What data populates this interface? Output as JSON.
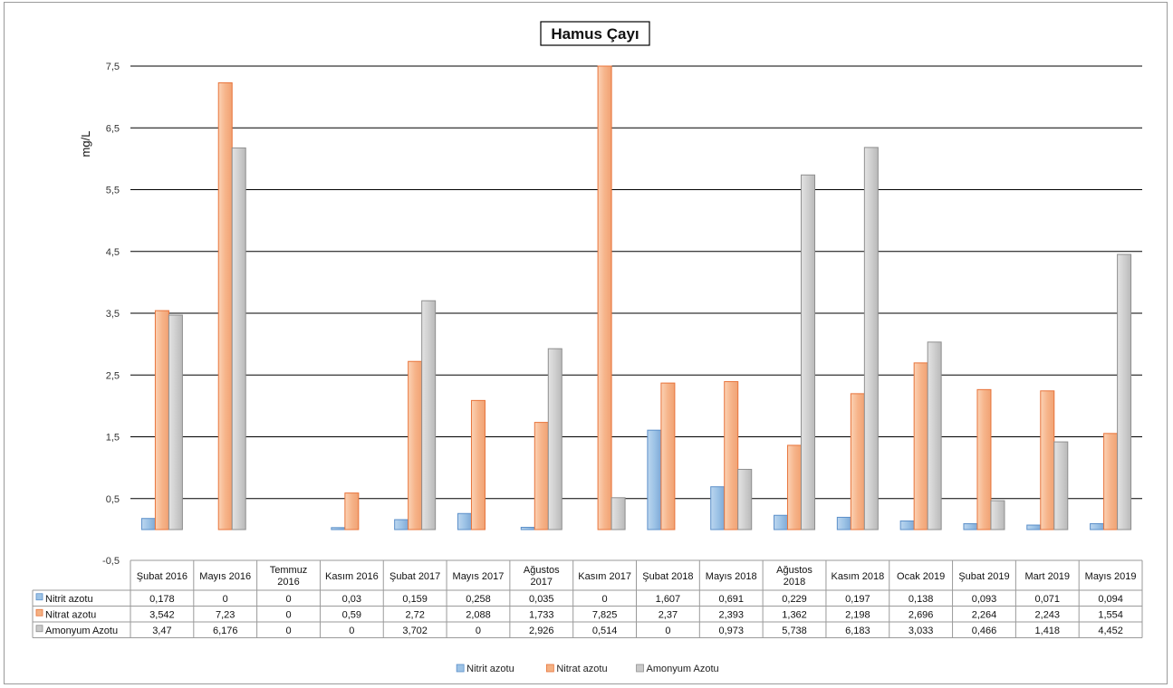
{
  "chart_data": {
    "type": "bar",
    "title": "Hamus Çayı",
    "ylabel": "mg/L",
    "ylim": [
      -0.5,
      7.5
    ],
    "yticks": [
      "7,5",
      "6,5",
      "5,5",
      "4,5",
      "3,5",
      "2,5",
      "1,5",
      "0,5",
      "-0,5"
    ],
    "ytick_values": [
      7.5,
      6.5,
      5.5,
      4.5,
      3.5,
      2.5,
      1.5,
      0.5,
      -0.5
    ],
    "grid": true,
    "legend_position": "bottom",
    "categories": [
      [
        "Şubat 2016"
      ],
      [
        "Mayıs 2016"
      ],
      [
        "Temmuz",
        "2016"
      ],
      [
        "Kasım 2016"
      ],
      [
        "Şubat 2017"
      ],
      [
        "Mayıs 2017"
      ],
      [
        "Ağustos",
        "2017"
      ],
      [
        "Kasım 2017"
      ],
      [
        "Şubat 2018"
      ],
      [
        "Mayıs 2018"
      ],
      [
        "Ağustos",
        "2018"
      ],
      [
        "Kasım 2018"
      ],
      [
        "Ocak 2019"
      ],
      [
        "Şubat 2019"
      ],
      [
        "Mart 2019"
      ],
      [
        "Mayıs 2019"
      ]
    ],
    "series": [
      {
        "name": "Nitrit azotu",
        "color": "#9dc3e6",
        "values": [
          0.178,
          0,
          0,
          0.03,
          0.159,
          0.258,
          0.035,
          0,
          1.607,
          0.691,
          0.229,
          0.197,
          0.138,
          0.093,
          0.071,
          0.094
        ],
        "labels": [
          "0,178",
          "0",
          "0",
          "0,03",
          "0,159",
          "0,258",
          "0,035",
          "0",
          "1,607",
          "0,691",
          "0,229",
          "0,197",
          "0,138",
          "0,093",
          "0,071",
          "0,094"
        ]
      },
      {
        "name": "Nitrat azotu",
        "color": "#f4b183",
        "values": [
          3.542,
          7.23,
          0,
          0.59,
          2.72,
          2.088,
          1.733,
          7.825,
          2.37,
          2.393,
          1.362,
          2.198,
          2.696,
          2.264,
          2.243,
          1.554
        ],
        "labels": [
          "3,542",
          "7,23",
          "0",
          "0,59",
          "2,72",
          "2,088",
          "1,733",
          "7,825",
          "2,37",
          "2,393",
          "1,362",
          "2,198",
          "2,696",
          "2,264",
          "2,243",
          "1,554"
        ]
      },
      {
        "name": "Amonyum Azotu",
        "color": "#c9c9c9",
        "values": [
          3.47,
          6.176,
          0,
          0,
          3.702,
          0,
          2.926,
          0.514,
          0,
          0.973,
          5.738,
          6.183,
          3.033,
          0.466,
          1.418,
          4.452
        ],
        "labels": [
          "3,47",
          "6,176",
          "0",
          "0",
          "3,702",
          "0",
          "2,926",
          "0,514",
          "0",
          "0,973",
          "5,738",
          "6,183",
          "3,033",
          "0,466",
          "1,418",
          "4,452"
        ]
      }
    ]
  }
}
